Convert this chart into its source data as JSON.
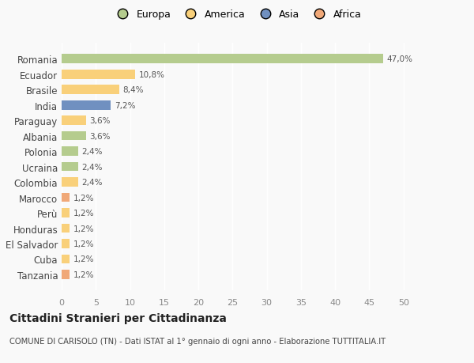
{
  "categories": [
    "Romania",
    "Ecuador",
    "Brasile",
    "India",
    "Paraguay",
    "Albania",
    "Polonia",
    "Ucraina",
    "Colombia",
    "Marocco",
    "Perù",
    "Honduras",
    "El Salvador",
    "Cuba",
    "Tanzania"
  ],
  "values": [
    47.0,
    10.8,
    8.4,
    7.2,
    3.6,
    3.6,
    2.4,
    2.4,
    2.4,
    1.2,
    1.2,
    1.2,
    1.2,
    1.2,
    1.2
  ],
  "labels": [
    "47,0%",
    "10,8%",
    "8,4%",
    "7,2%",
    "3,6%",
    "3,6%",
    "2,4%",
    "2,4%",
    "2,4%",
    "1,2%",
    "1,2%",
    "1,2%",
    "1,2%",
    "1,2%",
    "1,2%"
  ],
  "colors": [
    "#b5cc8e",
    "#f9d07a",
    "#f9d07a",
    "#7090c0",
    "#f9d07a",
    "#b5cc8e",
    "#b5cc8e",
    "#b5cc8e",
    "#f9d07a",
    "#f0a878",
    "#f9d07a",
    "#f9d07a",
    "#f9d07a",
    "#f9d07a",
    "#f0a878"
  ],
  "legend": {
    "Europa": "#b5cc8e",
    "America": "#f9d07a",
    "Asia": "#7090c0",
    "Africa": "#f0a878"
  },
  "xlim": [
    0,
    52
  ],
  "xticks": [
    0,
    5,
    10,
    15,
    20,
    25,
    30,
    35,
    40,
    45,
    50
  ],
  "title": "Cittadini Stranieri per Cittadinanza",
  "subtitle": "COMUNE DI CARISOLO (TN) - Dati ISTAT al 1° gennaio di ogni anno - Elaborazione TUTTITALIA.IT",
  "background_color": "#f9f9f9",
  "bar_height": 0.6
}
